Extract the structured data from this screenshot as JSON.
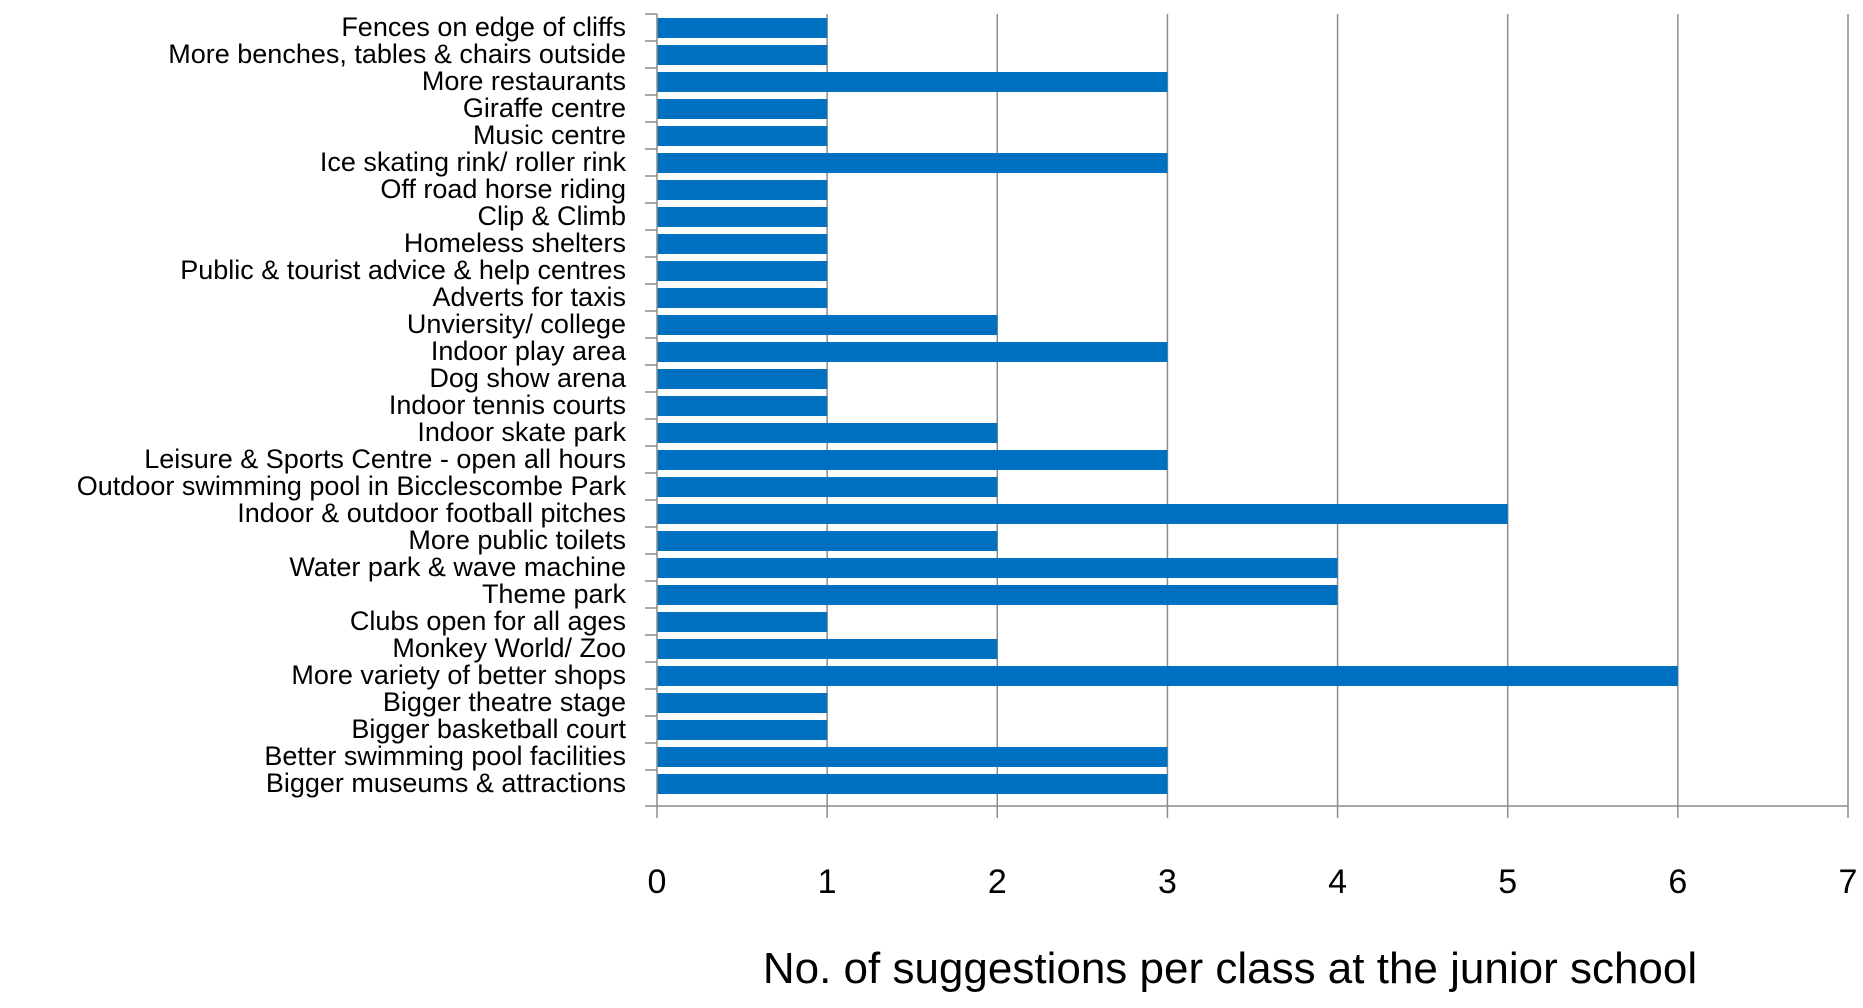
{
  "chart_data": {
    "type": "bar",
    "orientation": "horizontal",
    "title": "",
    "xlabel": "No. of suggestions per class at the junior school",
    "ylabel": "",
    "xlim": [
      0,
      7
    ],
    "xticks": [
      0,
      1,
      2,
      3,
      4,
      5,
      6,
      7
    ],
    "grid": "vertical",
    "legend": "none",
    "bar_color": "#0070C0",
    "grid_color": "#8c8c8c",
    "categories": [
      "Fences on edge of cliffs",
      "More benches, tables & chairs outside",
      "More restaurants",
      "Giraffe centre",
      "Music centre",
      "Ice skating rink/ roller rink",
      "Off road horse riding",
      "Clip & Climb",
      "Homeless shelters",
      "Public & tourist advice & help centres",
      "Adverts for taxis",
      "Unviersity/ college",
      "Indoor play area",
      "Dog show arena",
      "Indoor tennis courts",
      "Indoor skate park",
      "Leisure & Sports Centre - open all hours",
      "Outdoor swimming pool in Bicclescombe Park",
      "Indoor & outdoor football pitches",
      "More public toilets",
      "Water park & wave machine",
      "Theme park",
      "Clubs open for all ages",
      "Monkey World/ Zoo",
      "More variety of better shops",
      "Bigger theatre stage",
      "Bigger basketball court",
      "Better swimming pool facilities",
      "Bigger museums & attractions"
    ],
    "values": [
      1,
      1,
      3,
      1,
      1,
      3,
      1,
      1,
      1,
      1,
      1,
      2,
      3,
      1,
      1,
      2,
      3,
      2,
      5,
      2,
      4,
      4,
      1,
      2,
      6,
      1,
      1,
      3,
      3
    ]
  }
}
